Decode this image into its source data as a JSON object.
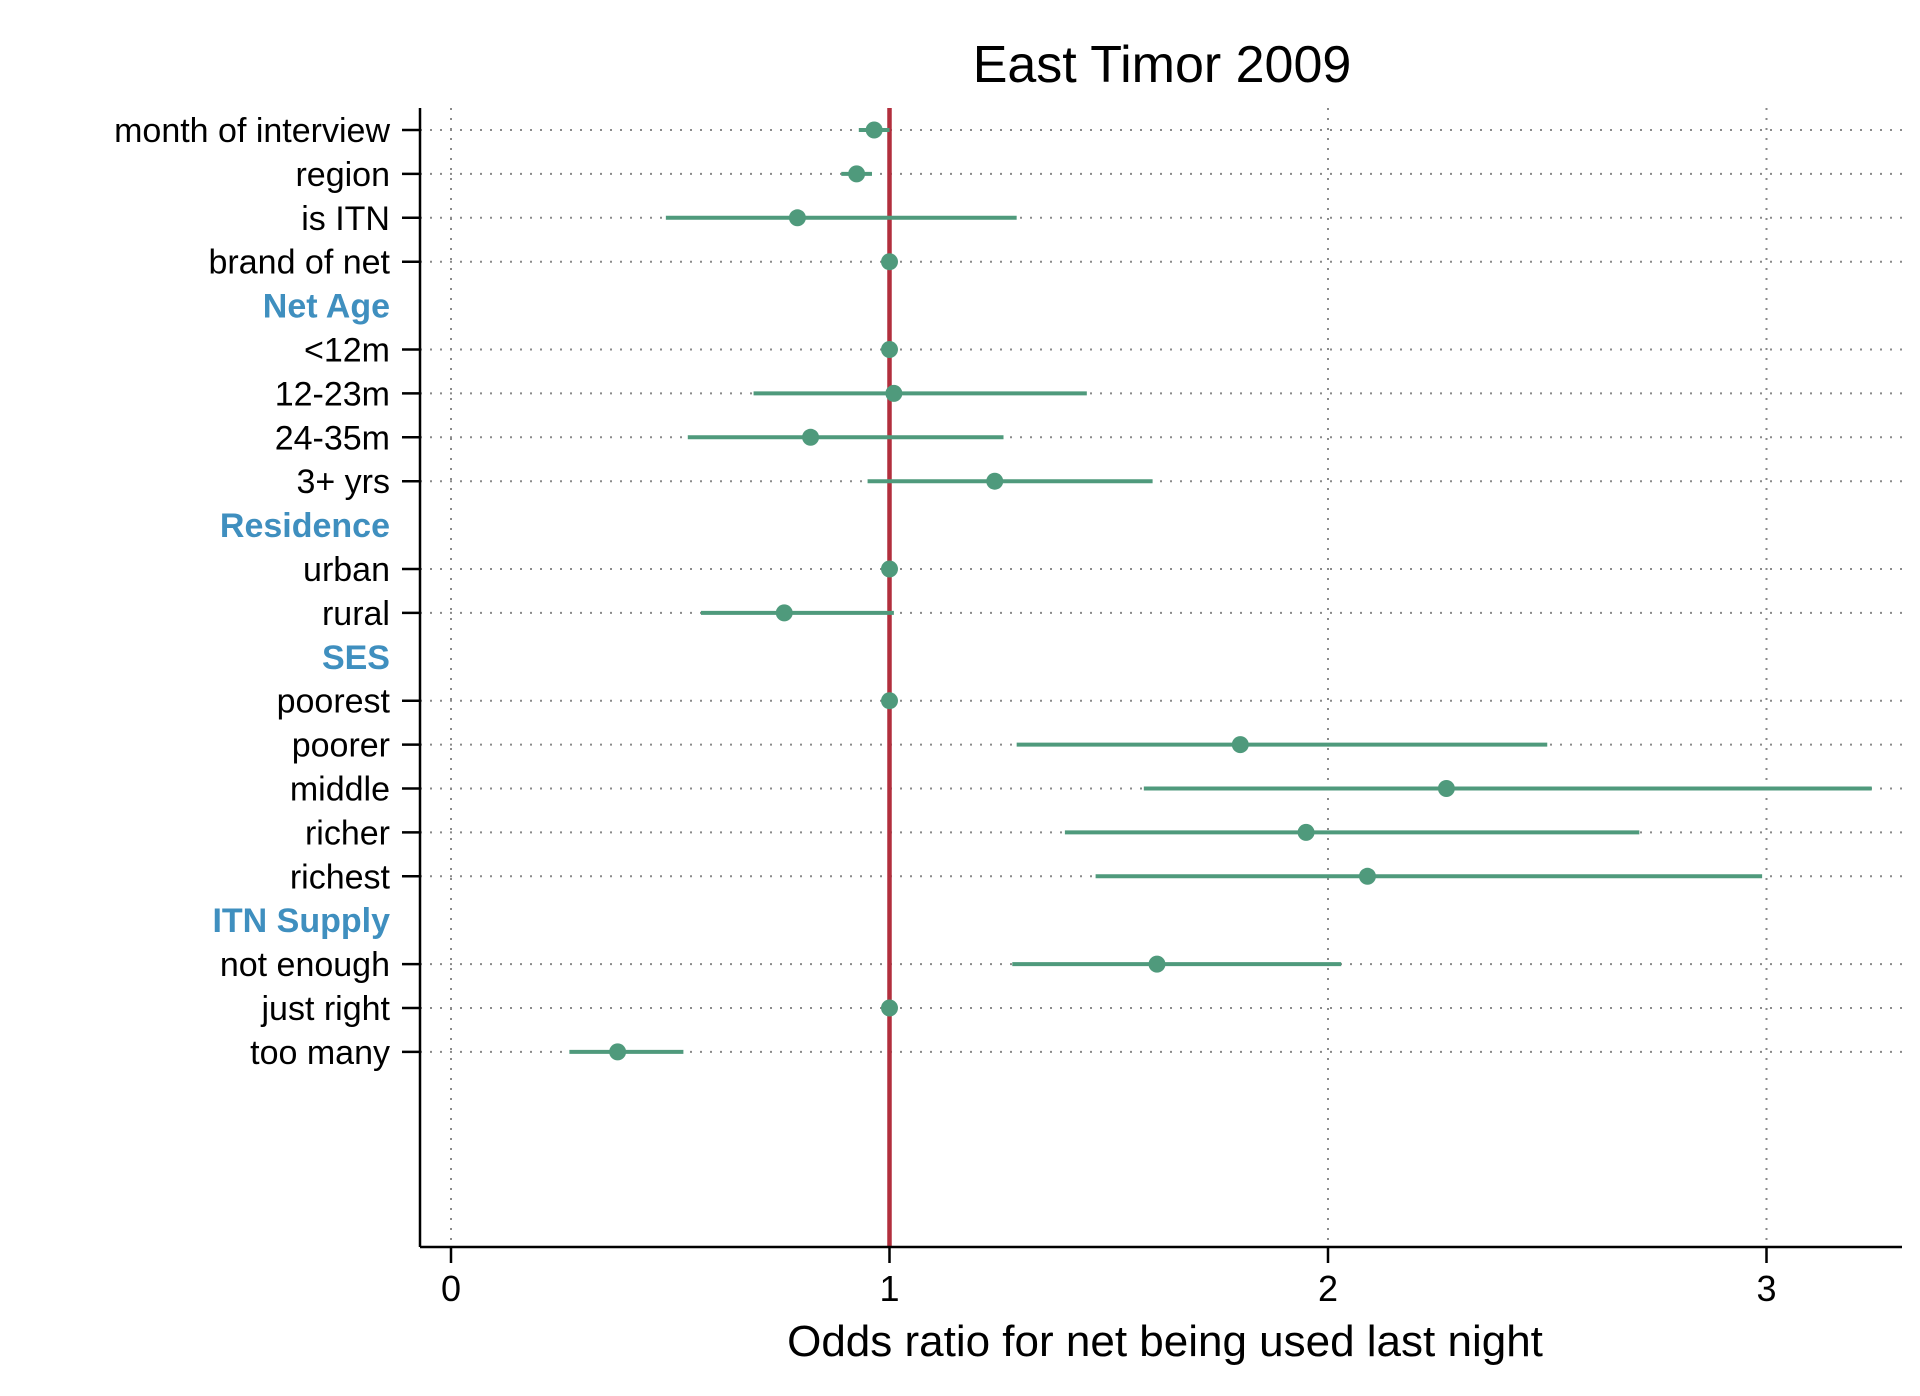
{
  "chart_data": {
    "type": "scatter",
    "title": "East Timor 2009",
    "xlabel": "Odds ratio for net being used last night",
    "ylabel": "",
    "xlim": [
      -0.07,
      3.3
    ],
    "xticks": [
      0,
      1,
      2,
      3
    ],
    "xtick_labels": [
      "0",
      "1",
      "2",
      "3"
    ],
    "reference_line": 1,
    "grid": true,
    "colors": {
      "point": "#4f9a7c",
      "reference": "#b22f3d",
      "group_label": "#3f8fbf"
    },
    "rows": [
      {
        "label": "month of interview",
        "or": 0.965,
        "lo": 0.93,
        "hi": 1.0
      },
      {
        "label": "region",
        "or": 0.925,
        "lo": 0.89,
        "hi": 0.96
      },
      {
        "label": "is ITN",
        "or": 0.79,
        "lo": 0.49,
        "hi": 1.29
      },
      {
        "label": "brand of net",
        "or": 1.0,
        "lo": 1.0,
        "hi": 1.0
      },
      {
        "group": "Net Age"
      },
      {
        "label": "<12m",
        "or": 1.0,
        "lo": 1.0,
        "hi": 1.0
      },
      {
        "label": "12-23m",
        "or": 1.01,
        "lo": 0.69,
        "hi": 1.45
      },
      {
        "label": "24-35m",
        "or": 0.82,
        "lo": 0.54,
        "hi": 1.26
      },
      {
        "label": "3+ yrs",
        "or": 1.24,
        "lo": 0.95,
        "hi": 1.6
      },
      {
        "group": "Residence"
      },
      {
        "label": "urban",
        "or": 1.0,
        "lo": 1.0,
        "hi": 1.0
      },
      {
        "label": "rural",
        "or": 0.76,
        "lo": 0.57,
        "hi": 1.01
      },
      {
        "group": "SES"
      },
      {
        "label": "poorest",
        "or": 1.0,
        "lo": 1.0,
        "hi": 1.0
      },
      {
        "label": "poorer",
        "or": 1.8,
        "lo": 1.29,
        "hi": 2.5
      },
      {
        "label": "middle",
        "or": 2.27,
        "lo": 1.58,
        "hi": 3.24
      },
      {
        "label": "richer",
        "or": 1.95,
        "lo": 1.4,
        "hi": 2.71
      },
      {
        "label": "richest",
        "or": 2.09,
        "lo": 1.47,
        "hi": 2.99
      },
      {
        "group": "ITN Supply"
      },
      {
        "label": "not enough",
        "or": 1.61,
        "lo": 1.28,
        "hi": 2.03
      },
      {
        "label": "just right",
        "or": 1.0,
        "lo": 1.0,
        "hi": 1.0
      },
      {
        "label": "too many",
        "or": 0.38,
        "lo": 0.27,
        "hi": 0.53
      }
    ]
  }
}
